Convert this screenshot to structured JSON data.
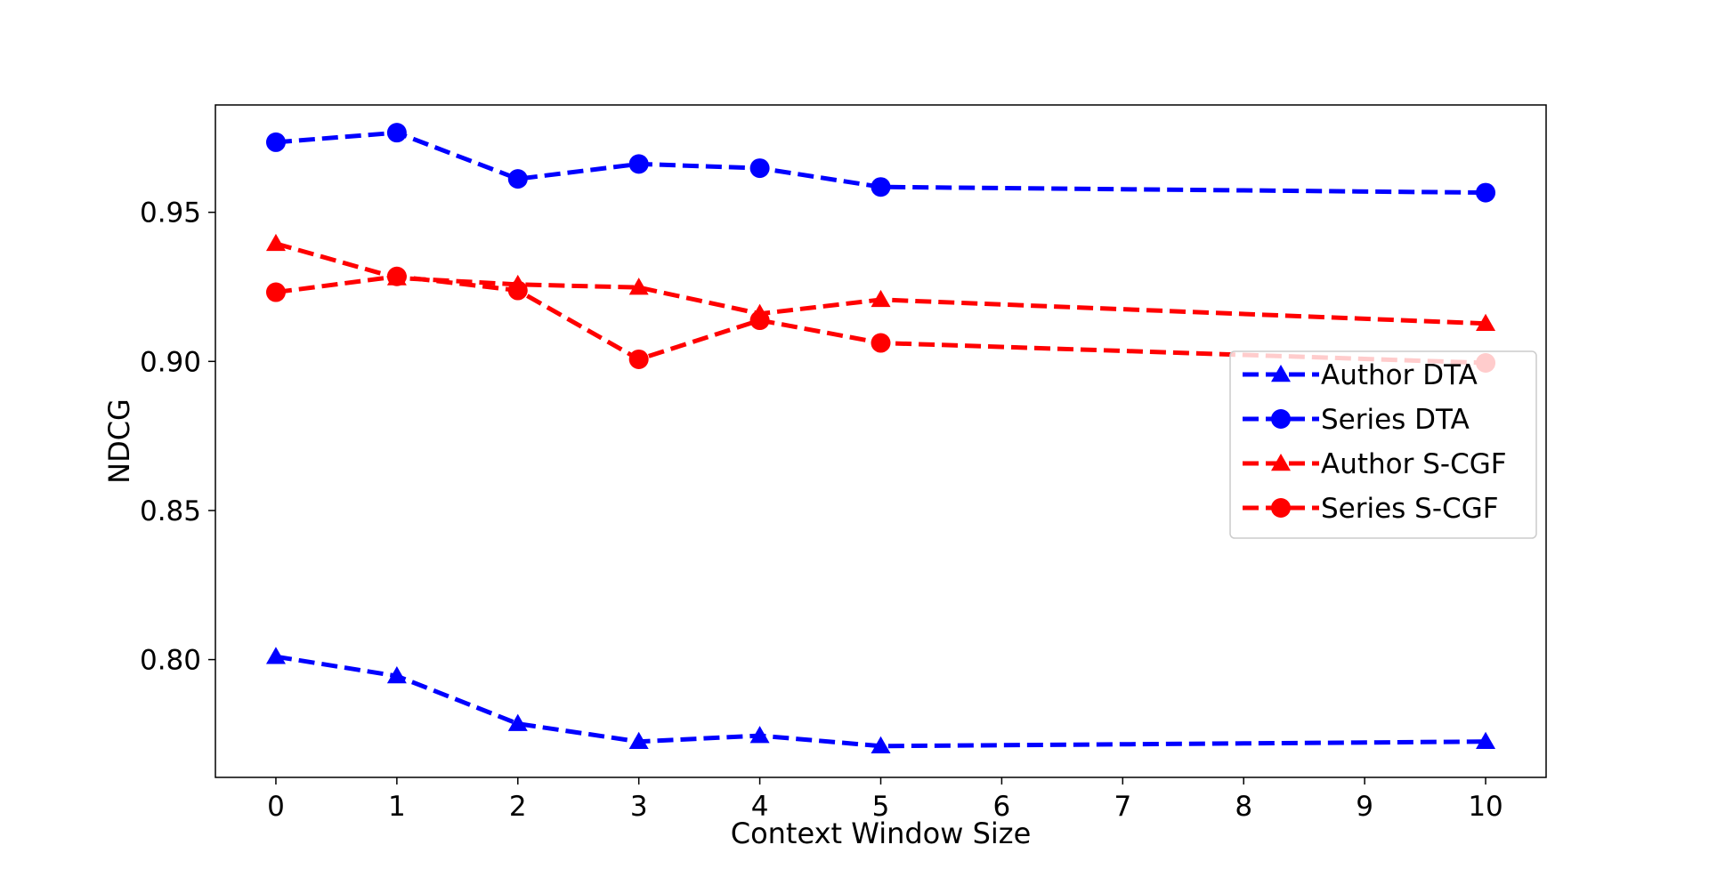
{
  "chart_data": {
    "type": "line",
    "title": "",
    "xlabel": "Context Window Size",
    "ylabel": "NDCG",
    "x": [
      0,
      1,
      2,
      3,
      4,
      5,
      10
    ],
    "x_ticks": [
      "0",
      "1",
      "2",
      "3",
      "4",
      "5",
      "6",
      "7",
      "8",
      "9",
      "10"
    ],
    "x_tick_values": [
      0,
      1,
      2,
      3,
      4,
      5,
      6,
      7,
      8,
      9,
      10
    ],
    "y_ticks": [
      "0.80",
      "0.85",
      "0.90",
      "0.95"
    ],
    "y_tick_values": [
      0.8,
      0.85,
      0.9,
      0.95
    ],
    "xlim": [
      -0.5,
      10.5
    ],
    "ylim": [
      0.7605,
      0.986
    ],
    "grid": false,
    "legend_position": "center-right",
    "series": [
      {
        "name": "Author DTA",
        "color": "#0000ff",
        "marker": "triangle",
        "linestyle": "dashed",
        "values": [
          0.801,
          0.7945,
          0.7785,
          0.7725,
          0.7745,
          0.771,
          0.7725
        ]
      },
      {
        "name": "Series DTA",
        "color": "#0000ff",
        "marker": "circle",
        "linestyle": "dashed",
        "values": [
          0.9735,
          0.9767,
          0.9612,
          0.9662,
          0.9648,
          0.9585,
          0.9566
        ]
      },
      {
        "name": "Author S-CGF",
        "color": "#ff0000",
        "marker": "triangle",
        "linestyle": "dashed",
        "values": [
          0.9395,
          0.928,
          0.9258,
          0.9248,
          0.916,
          0.9207,
          0.9127
        ]
      },
      {
        "name": "Series S-CGF",
        "color": "#ff0000",
        "marker": "circle",
        "linestyle": "dashed",
        "values": [
          0.9232,
          0.9285,
          0.9238,
          0.9007,
          0.9138,
          0.9062,
          0.8995
        ]
      }
    ]
  }
}
